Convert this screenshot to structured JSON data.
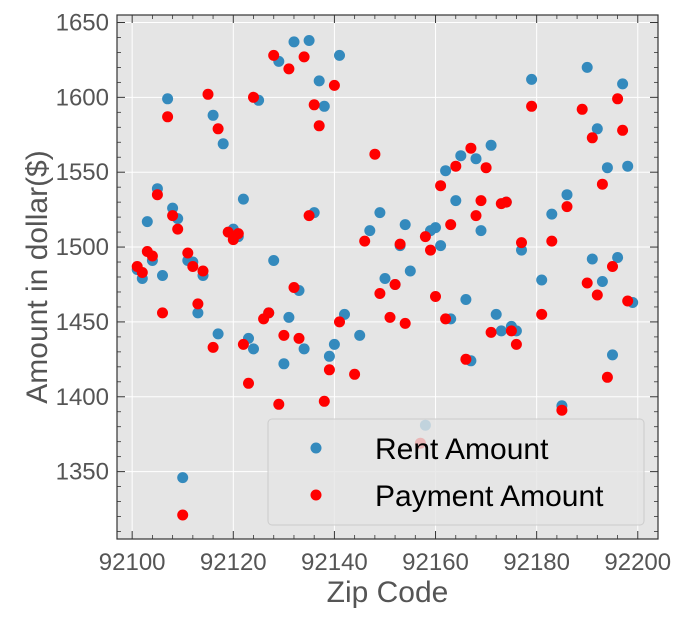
{
  "chart_data": {
    "type": "scatter",
    "xlabel": "Zip Code",
    "ylabel": "Amount in dollar($)",
    "xlim": [
      92097,
      92204
    ],
    "ylim": [
      1305,
      1655
    ],
    "xticks": [
      92100,
      92120,
      92140,
      92160,
      92180,
      92200
    ],
    "yticks": [
      1350,
      1400,
      1450,
      1500,
      1550,
      1600,
      1650
    ],
    "grid": true,
    "legend_position": "lower-right",
    "series": [
      {
        "name": "Rent Amount",
        "color": "#348ABD",
        "points": [
          [
            92101,
            1485
          ],
          [
            92102,
            1479
          ],
          [
            92103,
            1517
          ],
          [
            92104,
            1491
          ],
          [
            92105,
            1539
          ],
          [
            92106,
            1481
          ],
          [
            92107,
            1599
          ],
          [
            92108,
            1526
          ],
          [
            92109,
            1519
          ],
          [
            92110,
            1346
          ],
          [
            92111,
            1491
          ],
          [
            92112,
            1490
          ],
          [
            92113,
            1456
          ],
          [
            92114,
            1481
          ],
          [
            92116,
            1588
          ],
          [
            92117,
            1442
          ],
          [
            92118,
            1569
          ],
          [
            92120,
            1512
          ],
          [
            92121,
            1507
          ],
          [
            92122,
            1532
          ],
          [
            92123,
            1439
          ],
          [
            92124,
            1432
          ],
          [
            92125,
            1598
          ],
          [
            92127,
            1456
          ],
          [
            92128,
            1491
          ],
          [
            92129,
            1624
          ],
          [
            92130,
            1422
          ],
          [
            92131,
            1453
          ],
          [
            92132,
            1637
          ],
          [
            92133,
            1471
          ],
          [
            92134,
            1432
          ],
          [
            92135,
            1638
          ],
          [
            92136,
            1523
          ],
          [
            92137,
            1611
          ],
          [
            92138,
            1594
          ],
          [
            92139,
            1427
          ],
          [
            92140,
            1435
          ],
          [
            92141,
            1628
          ],
          [
            92142,
            1455
          ],
          [
            92145,
            1441
          ],
          [
            92147,
            1511
          ],
          [
            92149,
            1523
          ],
          [
            92150,
            1479
          ],
          [
            92152,
            1475
          ],
          [
            92153,
            1501
          ],
          [
            92154,
            1515
          ],
          [
            92155,
            1484
          ],
          [
            92158,
            1381
          ],
          [
            92159,
            1511
          ],
          [
            92160,
            1513
          ],
          [
            92161,
            1501
          ],
          [
            92162,
            1551
          ],
          [
            92163,
            1452
          ],
          [
            92164,
            1531
          ],
          [
            92165,
            1561
          ],
          [
            92166,
            1465
          ],
          [
            92167,
            1424
          ],
          [
            92168,
            1559
          ],
          [
            92169,
            1511
          ],
          [
            92171,
            1568
          ],
          [
            92172,
            1455
          ],
          [
            92173,
            1444
          ],
          [
            92174,
            1530
          ],
          [
            92175,
            1447
          ],
          [
            92176,
            1444
          ],
          [
            92177,
            1498
          ],
          [
            92179,
            1612
          ],
          [
            92181,
            1478
          ],
          [
            92183,
            1522
          ],
          [
            92185,
            1394
          ],
          [
            92186,
            1535
          ],
          [
            92190,
            1620
          ],
          [
            92191,
            1492
          ],
          [
            92192,
            1579
          ],
          [
            92193,
            1477
          ],
          [
            92194,
            1553
          ],
          [
            92195,
            1428
          ],
          [
            92196,
            1493
          ],
          [
            92197,
            1609
          ],
          [
            92198,
            1554
          ],
          [
            92199,
            1463
          ]
        ]
      },
      {
        "name": "Payment Amount",
        "color": "#FF0000",
        "points": [
          [
            92101,
            1487
          ],
          [
            92102,
            1483
          ],
          [
            92103,
            1497
          ],
          [
            92104,
            1494
          ],
          [
            92105,
            1535
          ],
          [
            92106,
            1456
          ],
          [
            92107,
            1587
          ],
          [
            92108,
            1521
          ],
          [
            92109,
            1512
          ],
          [
            92110,
            1321
          ],
          [
            92111,
            1496
          ],
          [
            92112,
            1487
          ],
          [
            92113,
            1462
          ],
          [
            92114,
            1484
          ],
          [
            92115,
            1602
          ],
          [
            92116,
            1433
          ],
          [
            92117,
            1579
          ],
          [
            92119,
            1510
          ],
          [
            92120,
            1505
          ],
          [
            92121,
            1509
          ],
          [
            92122,
            1435
          ],
          [
            92123,
            1409
          ],
          [
            92124,
            1600
          ],
          [
            92126,
            1452
          ],
          [
            92127,
            1456
          ],
          [
            92128,
            1628
          ],
          [
            92129,
            1395
          ],
          [
            92130,
            1441
          ],
          [
            92131,
            1619
          ],
          [
            92132,
            1473
          ],
          [
            92133,
            1439
          ],
          [
            92134,
            1627
          ],
          [
            92135,
            1521
          ],
          [
            92136,
            1595
          ],
          [
            92137,
            1581
          ],
          [
            92138,
            1397
          ],
          [
            92139,
            1418
          ],
          [
            92140,
            1608
          ],
          [
            92141,
            1450
          ],
          [
            92144,
            1415
          ],
          [
            92146,
            1504
          ],
          [
            92148,
            1562
          ],
          [
            92149,
            1469
          ],
          [
            92151,
            1453
          ],
          [
            92152,
            1475
          ],
          [
            92153,
            1502
          ],
          [
            92154,
            1449
          ],
          [
            92157,
            1369
          ],
          [
            92158,
            1507
          ],
          [
            92159,
            1498
          ],
          [
            92160,
            1467
          ],
          [
            92161,
            1541
          ],
          [
            92162,
            1452
          ],
          [
            92163,
            1515
          ],
          [
            92164,
            1554
          ],
          [
            92166,
            1425
          ],
          [
            92167,
            1566
          ],
          [
            92168,
            1521
          ],
          [
            92169,
            1531
          ],
          [
            92170,
            1553
          ],
          [
            92171,
            1443
          ],
          [
            92173,
            1529
          ],
          [
            92174,
            1530
          ],
          [
            92175,
            1444
          ],
          [
            92176,
            1435
          ],
          [
            92177,
            1503
          ],
          [
            92179,
            1594
          ],
          [
            92181,
            1455
          ],
          [
            92183,
            1504
          ],
          [
            92185,
            1391
          ],
          [
            92186,
            1527
          ],
          [
            92189,
            1592
          ],
          [
            92190,
            1476
          ],
          [
            92191,
            1573
          ],
          [
            92192,
            1468
          ],
          [
            92193,
            1542
          ],
          [
            92194,
            1413
          ],
          [
            92195,
            1487
          ],
          [
            92196,
            1599
          ],
          [
            92197,
            1578
          ],
          [
            92198,
            1464
          ]
        ]
      }
    ]
  }
}
